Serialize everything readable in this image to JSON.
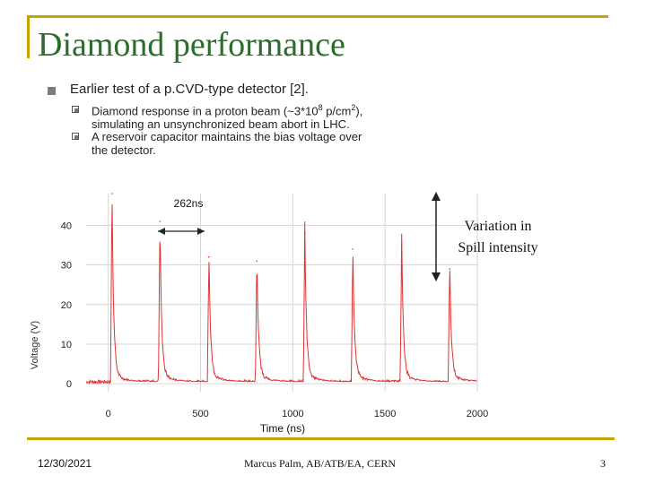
{
  "slide": {
    "title": "Diamond performance",
    "bullet": "Earlier test of a p.CVD-type detector [2].",
    "sub_bullets": [
      {
        "pre": "Diamond response in a proton beam (~3*10",
        "sup1": "8",
        "mid": " p/cm",
        "sup2": "2",
        "post": "),",
        "line2": "simulating an unsynchronized beam abort in LHC."
      },
      {
        "line1": "A reservoir capacitor maintains the bias voltage over",
        "line2": "the detector."
      }
    ],
    "annotation_ns": "262ns",
    "annotation_variation_line1": "Variation in",
    "annotation_variation_line2": "Spill intensity",
    "footer_date": "12/30/2021",
    "footer_author": "Marcus Palm, AB/ATB/EA, CERN",
    "footer_page": "3"
  },
  "colors": {
    "accent": "#c8a300",
    "title": "#2e6b2e",
    "trace": "#e03030",
    "arrow": "#222222"
  },
  "chart_data": {
    "type": "line",
    "title": "",
    "xlabel": "Time (ns)",
    "ylabel": "Voltage (V)",
    "xlim": [
      -120,
      2000
    ],
    "ylim": [
      -2,
      48
    ],
    "x_ticks": [
      0,
      500,
      1000,
      1500,
      2000
    ],
    "y_ticks": [
      0,
      10,
      20,
      30,
      40
    ],
    "grid": true,
    "series": [
      {
        "name": "Diamond response",
        "peaks": [
          {
            "x": 20,
            "y": 48
          },
          {
            "x": 280,
            "y": 41
          },
          {
            "x": 545,
            "y": 32
          },
          {
            "x": 805,
            "y": 31
          },
          {
            "x": 1065,
            "y": 38
          },
          {
            "x": 1325,
            "y": 34
          },
          {
            "x": 1590,
            "y": 36
          },
          {
            "x": 1850,
            "y": 29
          }
        ],
        "baseline": 0.5
      }
    ]
  }
}
